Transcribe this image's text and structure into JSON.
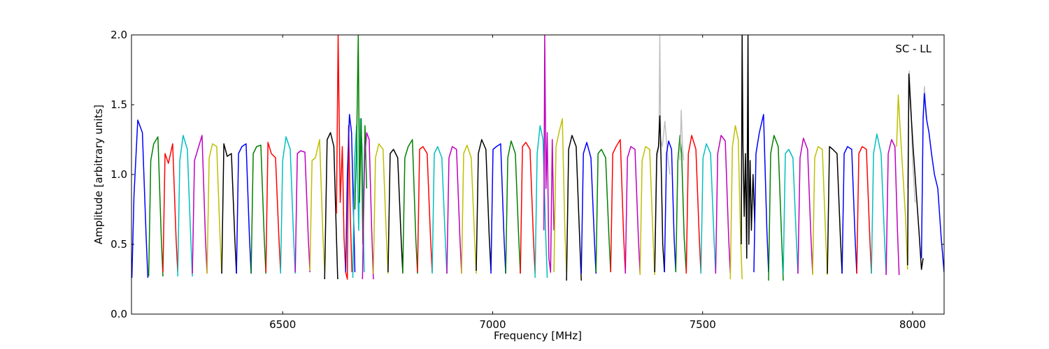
{
  "chart_data": {
    "type": "line",
    "annotation": "SC - LL",
    "xlabel": "Frequency [MHz]",
    "ylabel": "Amplitude [arbitrary units]",
    "xlim": [
      6140,
      8075
    ],
    "ylim": [
      0.0,
      2.0
    ],
    "xticks": [
      6500,
      7000,
      7500,
      8000
    ],
    "xtick_labels": [
      "6500",
      "7000",
      "7500",
      "8000"
    ],
    "yticks": [
      0.0,
      0.5,
      1.0,
      1.5,
      2.0
    ],
    "ytick_labels": [
      "0.0",
      "0.5",
      "1.0",
      "1.5",
      "2.0"
    ],
    "grid": false,
    "colors": {
      "blue": "#0000ff",
      "green": "#008000",
      "red": "#ff0000",
      "cyan": "#00bfbf",
      "magenta": "#bf00bf",
      "olive": "#bfbf00",
      "black": "#000000",
      "gray": "#bfbfbf"
    },
    "segments": [
      {
        "color": "blue",
        "x": [
          6141,
          6146,
          6155,
          6166,
          6175,
          6179
        ],
        "y": [
          0.26,
          0.85,
          1.39,
          1.3,
          0.55,
          0.26
        ]
      },
      {
        "color": "green",
        "x": [
          6181,
          6186,
          6193,
          6203,
          6211,
          6215
        ],
        "y": [
          0.27,
          1.1,
          1.22,
          1.27,
          0.55,
          0.27
        ]
      },
      {
        "color": "red",
        "x": [
          6215,
          6220,
          6228,
          6238,
          6246,
          6250
        ],
        "y": [
          0.3,
          1.15,
          1.08,
          1.22,
          0.55,
          0.3
        ]
      },
      {
        "color": "cyan",
        "x": [
          6250,
          6255,
          6263,
          6273,
          6281,
          6285
        ],
        "y": [
          0.27,
          1.1,
          1.28,
          1.18,
          0.55,
          0.27
        ]
      },
      {
        "color": "magenta",
        "x": [
          6285,
          6290,
          6298,
          6308,
          6316,
          6320
        ],
        "y": [
          0.29,
          1.1,
          1.18,
          1.28,
          0.55,
          0.29
        ]
      },
      {
        "color": "olive",
        "x": [
          6320,
          6325,
          6333,
          6343,
          6351,
          6355
        ],
        "y": [
          0.29,
          1.12,
          1.22,
          1.2,
          0.55,
          0.29
        ]
      },
      {
        "color": "black",
        "x": [
          6355,
          6360,
          6368,
          6378,
          6386,
          6390
        ],
        "y": [
          0.29,
          1.22,
          1.13,
          1.15,
          0.55,
          0.29
        ]
      },
      {
        "color": "blue",
        "x": [
          6390,
          6395,
          6403,
          6413,
          6421,
          6425
        ],
        "y": [
          0.29,
          1.15,
          1.2,
          1.22,
          0.55,
          0.29
        ]
      },
      {
        "color": "green",
        "x": [
          6425,
          6430,
          6438,
          6448,
          6456,
          6460
        ],
        "y": [
          0.29,
          1.15,
          1.2,
          1.21,
          0.55,
          0.29
        ]
      },
      {
        "color": "red",
        "x": [
          6460,
          6465,
          6473,
          6483,
          6491,
          6495
        ],
        "y": [
          0.3,
          1.23,
          1.15,
          1.12,
          0.55,
          0.3
        ]
      },
      {
        "color": "cyan",
        "x": [
          6495,
          6500,
          6508,
          6518,
          6526,
          6530
        ],
        "y": [
          0.29,
          1.1,
          1.27,
          1.18,
          0.55,
          0.29
        ]
      },
      {
        "color": "magenta",
        "x": [
          6530,
          6535,
          6543,
          6553,
          6561,
          6565
        ],
        "y": [
          0.3,
          1.15,
          1.17,
          1.16,
          0.55,
          0.3
        ]
      },
      {
        "color": "olive",
        "x": [
          6565,
          6570,
          6578,
          6588,
          6596,
          6600
        ],
        "y": [
          0.31,
          1.1,
          1.12,
          1.25,
          0.55,
          0.31
        ]
      },
      {
        "color": "black",
        "x": [
          6600,
          6606,
          6614,
          6622,
          6628,
          6631
        ],
        "y": [
          0.25,
          1.25,
          1.3,
          1.2,
          0.55,
          0.25
        ]
      },
      {
        "color": "red",
        "x": [
          6628,
          6632,
          6637,
          6642,
          6646,
          6650,
          6654,
          6657,
          6661,
          6665
        ],
        "y": [
          0.72,
          2.0,
          0.8,
          1.2,
          0.55,
          0.3,
          0.25,
          1.35,
          0.7,
          0.3
        ]
      },
      {
        "color": "blue",
        "x": [
          6650,
          6654,
          6659,
          6664,
          6668,
          6672
        ],
        "y": [
          0.3,
          1.0,
          1.43,
          1.3,
          0.8,
          0.3
        ]
      },
      {
        "color": "cyan",
        "x": [
          6667,
          6671,
          6676,
          6681,
          6685,
          6689,
          6694
        ],
        "y": [
          0.26,
          1.1,
          1.35,
          0.6,
          1.4,
          1.2,
          0.3
        ]
      },
      {
        "color": "green",
        "x": [
          6672,
          6676,
          6680,
          6683,
          6687,
          6691,
          6696,
          6700
        ],
        "y": [
          0.75,
          1.2,
          2.0,
          0.8,
          1.4,
          0.5,
          1.35,
          0.9
        ]
      },
      {
        "color": "magenta",
        "x": [
          6690,
          6695,
          6700,
          6706,
          6712,
          6716
        ],
        "y": [
          0.25,
          1.1,
          1.3,
          1.25,
          0.6,
          0.25
        ]
      },
      {
        "color": "olive",
        "x": [
          6716,
          6721,
          6729,
          6739,
          6747,
          6751
        ],
        "y": [
          0.29,
          1.12,
          1.22,
          1.18,
          0.55,
          0.29
        ]
      },
      {
        "color": "black",
        "x": [
          6751,
          6756,
          6764,
          6774,
          6782,
          6786
        ],
        "y": [
          0.3,
          1.15,
          1.18,
          1.12,
          0.55,
          0.3
        ]
      },
      {
        "color": "green",
        "x": [
          6786,
          6791,
          6799,
          6809,
          6817,
          6821
        ],
        "y": [
          0.29,
          1.12,
          1.2,
          1.25,
          0.55,
          0.29
        ]
      },
      {
        "color": "red",
        "x": [
          6821,
          6826,
          6834,
          6844,
          6852,
          6856
        ],
        "y": [
          0.3,
          1.18,
          1.2,
          1.15,
          0.55,
          0.3
        ]
      },
      {
        "color": "cyan",
        "x": [
          6856,
          6861,
          6869,
          6879,
          6887,
          6891
        ],
        "y": [
          0.29,
          1.15,
          1.2,
          1.12,
          0.55,
          0.29
        ]
      },
      {
        "color": "magenta",
        "x": [
          6891,
          6896,
          6904,
          6914,
          6922,
          6926
        ],
        "y": [
          0.29,
          1.12,
          1.2,
          1.18,
          0.55,
          0.29
        ]
      },
      {
        "color": "olive",
        "x": [
          6926,
          6931,
          6939,
          6949,
          6957,
          6961
        ],
        "y": [
          0.29,
          1.15,
          1.21,
          1.12,
          0.55,
          0.29
        ]
      },
      {
        "color": "black",
        "x": [
          6961,
          6966,
          6974,
          6984,
          6992,
          6996
        ],
        "y": [
          0.31,
          1.15,
          1.25,
          1.18,
          0.55,
          0.31
        ]
      },
      {
        "color": "blue",
        "x": [
          6996,
          7001,
          7009,
          7019,
          7027,
          7031
        ],
        "y": [
          0.29,
          1.18,
          1.2,
          1.22,
          0.55,
          0.29
        ]
      },
      {
        "color": "green",
        "x": [
          7031,
          7036,
          7044,
          7054,
          7062,
          7066
        ],
        "y": [
          0.29,
          1.12,
          1.24,
          1.15,
          0.55,
          0.29
        ]
      },
      {
        "color": "red",
        "x": [
          7066,
          7071,
          7079,
          7089,
          7097,
          7101
        ],
        "y": [
          0.29,
          1.2,
          1.23,
          1.18,
          0.55,
          0.29
        ]
      },
      {
        "color": "cyan",
        "x": [
          7101,
          7106,
          7113,
          7120,
          7126,
          7130
        ],
        "y": [
          0.26,
          1.15,
          1.35,
          1.25,
          0.6,
          0.26
        ]
      },
      {
        "color": "magenta",
        "x": [
          7122,
          7124,
          7127,
          7130,
          7134,
          7138,
          7142,
          7146
        ],
        "y": [
          0.6,
          2.0,
          0.9,
          1.3,
          0.4,
          0.3,
          1.25,
          0.6
        ]
      },
      {
        "color": "olive",
        "x": [
          7146,
          7151,
          7158,
          7166,
          7172,
          7176
        ],
        "y": [
          0.3,
          1.2,
          1.3,
          1.4,
          0.6,
          0.3
        ]
      },
      {
        "color": "black",
        "x": [
          7176,
          7181,
          7189,
          7199,
          7207,
          7211
        ],
        "y": [
          0.24,
          1.18,
          1.28,
          1.2,
          0.55,
          0.24
        ]
      },
      {
        "color": "blue",
        "x": [
          7211,
          7216,
          7224,
          7234,
          7242,
          7246
        ],
        "y": [
          0.29,
          1.15,
          1.23,
          1.12,
          0.55,
          0.29
        ]
      },
      {
        "color": "green",
        "x": [
          7246,
          7251,
          7259,
          7269,
          7277,
          7281
        ],
        "y": [
          0.3,
          1.15,
          1.18,
          1.12,
          0.55,
          0.3
        ]
      },
      {
        "color": "red",
        "x": [
          7281,
          7286,
          7294,
          7304,
          7312,
          7316
        ],
        "y": [
          0.3,
          1.15,
          1.2,
          1.25,
          0.55,
          0.3
        ]
      },
      {
        "color": "magenta",
        "x": [
          7316,
          7321,
          7329,
          7339,
          7347,
          7351
        ],
        "y": [
          0.29,
          1.12,
          1.2,
          1.18,
          0.55,
          0.29
        ]
      },
      {
        "color": "olive",
        "x": [
          7351,
          7356,
          7364,
          7374,
          7382,
          7386
        ],
        "y": [
          0.28,
          1.1,
          1.2,
          1.18,
          0.55,
          0.28
        ]
      },
      {
        "color": "gray",
        "x": [
          7386,
          7390,
          7396,
          7398,
          7400,
          7404,
          7410,
          7415,
          7418,
          7422
        ],
        "y": [
          0.3,
          1.1,
          1.2,
          2.0,
          1.25,
          1.2,
          1.38,
          1.2,
          1.1,
          1.0
        ]
      },
      {
        "color": "black",
        "x": [
          7386,
          7391,
          7395,
          7398,
          7401,
          7405,
          7409
        ],
        "y": [
          0.3,
          1.15,
          1.2,
          1.42,
          1.1,
          0.5,
          0.3
        ]
      },
      {
        "color": "blue",
        "x": [
          7409,
          7414,
          7419,
          7426,
          7432,
          7436
        ],
        "y": [
          0.3,
          1.15,
          1.24,
          1.18,
          0.55,
          0.3
        ]
      },
      {
        "color": "green",
        "x": [
          7436,
          7441,
          7446,
          7450,
          7456,
          7461
        ],
        "y": [
          0.3,
          1.1,
          1.28,
          1.15,
          0.55,
          0.3
        ]
      },
      {
        "color": "gray",
        "x": [
          7446,
          7449,
          7452,
          7455
        ],
        "y": [
          1.1,
          1.46,
          1.2,
          1.1
        ]
      },
      {
        "color": "red",
        "x": [
          7461,
          7466,
          7474,
          7484,
          7492,
          7496
        ],
        "y": [
          0.29,
          1.15,
          1.28,
          1.18,
          0.55,
          0.29
        ]
      },
      {
        "color": "cyan",
        "x": [
          7496,
          7501,
          7509,
          7519,
          7527,
          7531
        ],
        "y": [
          0.29,
          1.12,
          1.22,
          1.15,
          0.55,
          0.29
        ]
      },
      {
        "color": "magenta",
        "x": [
          7531,
          7536,
          7544,
          7554,
          7562,
          7566
        ],
        "y": [
          0.29,
          1.15,
          1.28,
          1.24,
          0.55,
          0.29
        ]
      },
      {
        "color": "olive",
        "x": [
          7566,
          7571,
          7578,
          7585,
          7590,
          7594
        ],
        "y": [
          0.25,
          1.2,
          1.35,
          1.25,
          0.6,
          0.25
        ]
      },
      {
        "color": "black",
        "x": [
          7592,
          7594,
          7596,
          7599,
          7602,
          7605,
          7608,
          7610,
          7613,
          7616,
          7620,
          7624
        ],
        "y": [
          0.5,
          2.0,
          1.2,
          0.7,
          1.15,
          0.4,
          2.0,
          0.5,
          1.1,
          0.6,
          1.0,
          0.65
        ]
      },
      {
        "color": "blue",
        "x": [
          7622,
          7627,
          7635,
          7645,
          7653,
          7657
        ],
        "y": [
          0.3,
          1.15,
          1.3,
          1.43,
          0.6,
          0.3
        ]
      },
      {
        "color": "green",
        "x": [
          7657,
          7662,
          7670,
          7680,
          7688,
          7692
        ],
        "y": [
          0.24,
          1.15,
          1.28,
          1.2,
          0.55,
          0.24
        ]
      },
      {
        "color": "cyan",
        "x": [
          7692,
          7697,
          7705,
          7715,
          7723,
          7727
        ],
        "y": [
          0.29,
          1.15,
          1.18,
          1.12,
          0.55,
          0.29
        ]
      },
      {
        "color": "magenta",
        "x": [
          7727,
          7732,
          7740,
          7750,
          7758,
          7762
        ],
        "y": [
          0.29,
          1.12,
          1.26,
          1.18,
          0.55,
          0.29
        ]
      },
      {
        "color": "olive",
        "x": [
          7762,
          7767,
          7775,
          7785,
          7793,
          7797
        ],
        "y": [
          0.28,
          1.12,
          1.2,
          1.18,
          0.55,
          0.28
        ]
      },
      {
        "color": "black",
        "x": [
          7797,
          7802,
          7810,
          7820,
          7828,
          7832
        ],
        "y": [
          0.29,
          1.2,
          1.18,
          1.15,
          0.55,
          0.29
        ]
      },
      {
        "color": "blue",
        "x": [
          7832,
          7837,
          7845,
          7855,
          7863,
          7867
        ],
        "y": [
          0.29,
          1.15,
          1.2,
          1.18,
          0.55,
          0.29
        ]
      },
      {
        "color": "red",
        "x": [
          7867,
          7872,
          7880,
          7890,
          7898,
          7902
        ],
        "y": [
          0.29,
          1.15,
          1.2,
          1.18,
          0.55,
          0.29
        ]
      },
      {
        "color": "cyan",
        "x": [
          7902,
          7907,
          7915,
          7925,
          7933,
          7937
        ],
        "y": [
          0.29,
          1.15,
          1.29,
          1.15,
          0.55,
          0.29
        ]
      },
      {
        "color": "magenta",
        "x": [
          7937,
          7942,
          7950,
          7958,
          7964,
          7968
        ],
        "y": [
          0.28,
          1.15,
          1.25,
          1.2,
          0.6,
          0.28
        ]
      },
      {
        "color": "olive",
        "x": [
          7962,
          7966,
          7970,
          7976,
          7983,
          7988
        ],
        "y": [
          1.2,
          1.57,
          1.35,
          1.05,
          0.7,
          0.32
        ]
      },
      {
        "color": "gray",
        "x": [
          7988,
          7992,
          7996,
          8000,
          8006
        ],
        "y": [
          0.9,
          1.74,
          1.5,
          1.1,
          0.8
        ]
      },
      {
        "color": "black",
        "x": [
          7988,
          7991,
          7995,
          8001,
          8008,
          8015,
          8021,
          8025
        ],
        "y": [
          0.35,
          1.72,
          1.5,
          1.2,
          0.9,
          0.6,
          0.32,
          0.4
        ]
      },
      {
        "color": "gray",
        "x": [
          8025,
          8028,
          8031,
          8034
        ],
        "y": [
          1.4,
          1.63,
          1.5,
          1.4
        ]
      },
      {
        "color": "blue",
        "x": [
          8021,
          8025,
          8028,
          8033,
          8039,
          8045,
          8052,
          8060,
          8068,
          8075
        ],
        "y": [
          0.4,
          1.4,
          1.58,
          1.4,
          1.3,
          1.15,
          1.0,
          0.9,
          0.55,
          0.3
        ]
      }
    ]
  }
}
